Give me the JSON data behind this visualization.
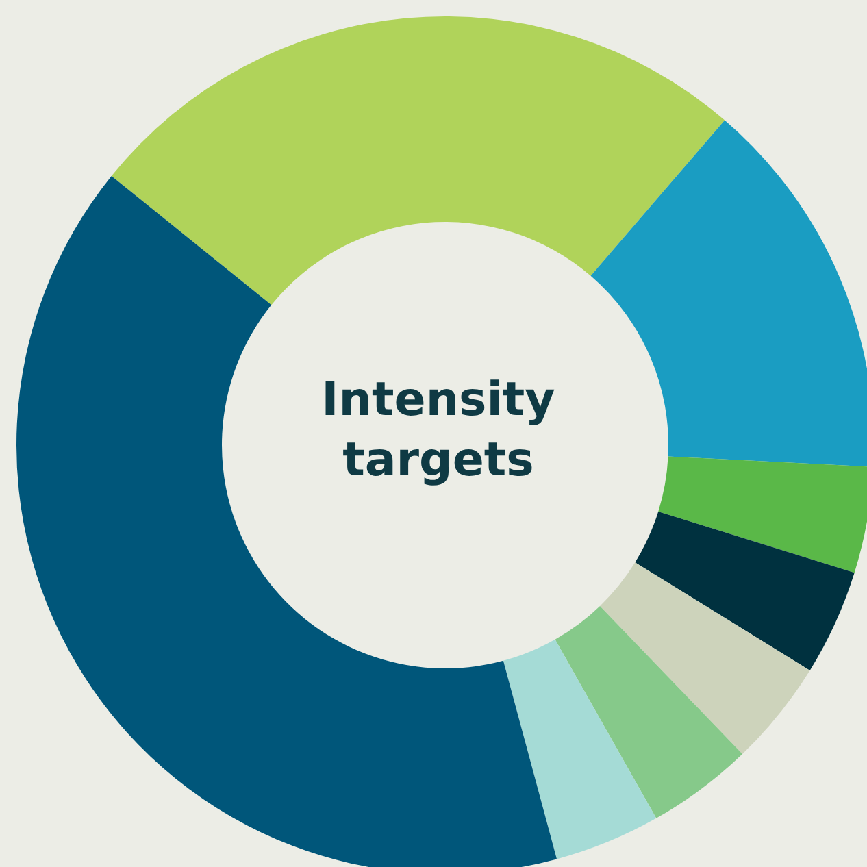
{
  "chart_data": {
    "type": "donut",
    "title": "Intensity targets",
    "categories": [
      null,
      null,
      null,
      null,
      null,
      null,
      null,
      null
    ],
    "values": [
      25.5,
      14.5,
      4,
      4,
      4,
      4,
      4,
      40
    ],
    "colors": [
      "#b0d35a",
      "#1a9dc2",
      "#5ab848",
      "#00313f",
      "#cdd3bb",
      "#86c98a",
      "#a5dbd6",
      "#00567a"
    ],
    "legend": false
  }
}
